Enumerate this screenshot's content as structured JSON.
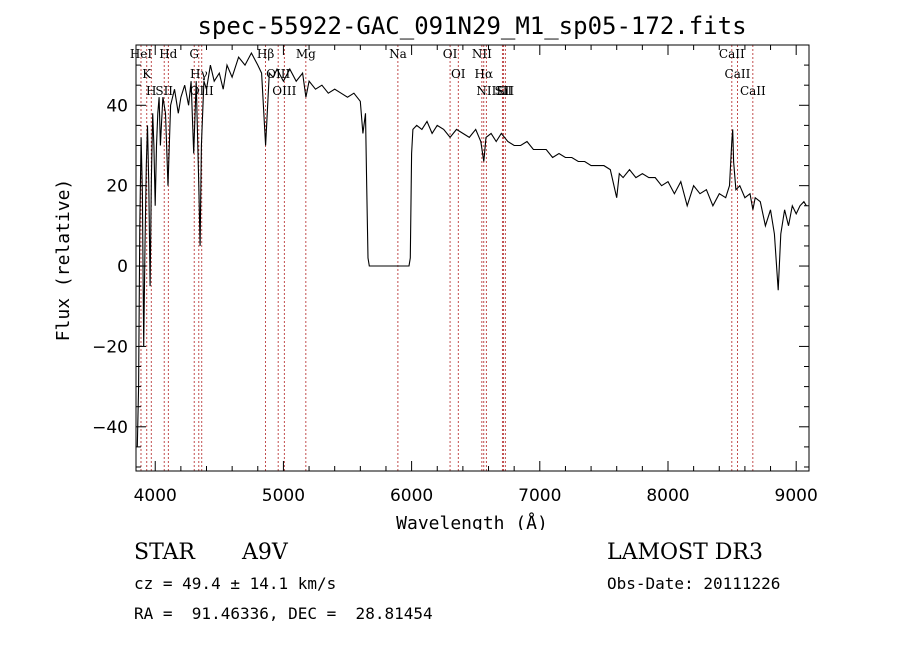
{
  "chart_data": {
    "type": "line",
    "title": "spec-55922-GAC_091N29_M1_sp05-172.fits",
    "xlabel": "Wavelength (Å)",
    "ylabel": "Flux (relative)",
    "xlim": [
      3850,
      9100
    ],
    "ylim": [
      -51,
      55
    ],
    "xticks": [
      4000,
      5000,
      6000,
      7000,
      8000,
      9000
    ],
    "yticks": [
      -40,
      -20,
      0,
      20,
      40
    ],
    "series": [
      {
        "points": [
          [
            3860,
            -45
          ],
          [
            3870,
            -30
          ],
          [
            3880,
            10
          ],
          [
            3890,
            32
          ],
          [
            3900,
            18
          ],
          [
            3910,
            -20
          ],
          [
            3920,
            5
          ],
          [
            3930,
            25
          ],
          [
            3940,
            35
          ],
          [
            3950,
            20
          ],
          [
            3960,
            -5
          ],
          [
            3970,
            22
          ],
          [
            3980,
            38
          ],
          [
            3990,
            30
          ],
          [
            4000,
            15
          ],
          [
            4010,
            30
          ],
          [
            4020,
            38
          ],
          [
            4030,
            42
          ],
          [
            4040,
            30
          ],
          [
            4050,
            36
          ],
          [
            4060,
            42
          ],
          [
            4080,
            38
          ],
          [
            4100,
            20
          ],
          [
            4120,
            40
          ],
          [
            4150,
            44
          ],
          [
            4180,
            38
          ],
          [
            4200,
            42
          ],
          [
            4230,
            45
          ],
          [
            4260,
            40
          ],
          [
            4280,
            46
          ],
          [
            4300,
            28
          ],
          [
            4320,
            46
          ],
          [
            4340,
            20
          ],
          [
            4350,
            5
          ],
          [
            4360,
            30
          ],
          [
            4380,
            46
          ],
          [
            4400,
            44
          ],
          [
            4430,
            50
          ],
          [
            4460,
            46
          ],
          [
            4500,
            48
          ],
          [
            4530,
            44
          ],
          [
            4560,
            50
          ],
          [
            4600,
            47
          ],
          [
            4650,
            52
          ],
          [
            4700,
            50
          ],
          [
            4750,
            53
          ],
          [
            4800,
            50
          ],
          [
            4830,
            48
          ],
          [
            4861,
            30
          ],
          [
            4890,
            48
          ],
          [
            4920,
            47
          ],
          [
            4950,
            49
          ],
          [
            5000,
            46
          ],
          [
            5050,
            49
          ],
          [
            5100,
            46
          ],
          [
            5150,
            48
          ],
          [
            5175,
            42
          ],
          [
            5200,
            46
          ],
          [
            5250,
            44
          ],
          [
            5300,
            45
          ],
          [
            5350,
            43
          ],
          [
            5400,
            44
          ],
          [
            5450,
            43
          ],
          [
            5500,
            42
          ],
          [
            5550,
            43
          ],
          [
            5600,
            41
          ],
          [
            5620,
            33
          ],
          [
            5640,
            38
          ],
          [
            5650,
            20
          ],
          [
            5660,
            2
          ],
          [
            5670,
            0
          ],
          [
            5700,
            0
          ],
          [
            5800,
            0
          ],
          [
            5900,
            0
          ],
          [
            5980,
            0
          ],
          [
            5990,
            2
          ],
          [
            6000,
            28
          ],
          [
            6010,
            34
          ],
          [
            6040,
            35
          ],
          [
            6080,
            34
          ],
          [
            6120,
            36
          ],
          [
            6160,
            33
          ],
          [
            6200,
            35
          ],
          [
            6250,
            34
          ],
          [
            6300,
            32
          ],
          [
            6350,
            34
          ],
          [
            6400,
            33
          ],
          [
            6450,
            32
          ],
          [
            6500,
            34
          ],
          [
            6540,
            31
          ],
          [
            6563,
            26
          ],
          [
            6580,
            32
          ],
          [
            6620,
            33
          ],
          [
            6660,
            31
          ],
          [
            6700,
            33
          ],
          [
            6750,
            31
          ],
          [
            6800,
            30
          ],
          [
            6850,
            30
          ],
          [
            6900,
            31
          ],
          [
            6950,
            29
          ],
          [
            7000,
            29
          ],
          [
            7050,
            29
          ],
          [
            7100,
            27
          ],
          [
            7150,
            28
          ],
          [
            7200,
            27
          ],
          [
            7250,
            27
          ],
          [
            7300,
            26
          ],
          [
            7350,
            26
          ],
          [
            7400,
            25
          ],
          [
            7450,
            25
          ],
          [
            7500,
            25
          ],
          [
            7550,
            24
          ],
          [
            7600,
            17
          ],
          [
            7620,
            23
          ],
          [
            7650,
            22
          ],
          [
            7700,
            24
          ],
          [
            7750,
            22
          ],
          [
            7800,
            23
          ],
          [
            7850,
            22
          ],
          [
            7900,
            22
          ],
          [
            7950,
            20
          ],
          [
            8000,
            21
          ],
          [
            8050,
            18
          ],
          [
            8100,
            21
          ],
          [
            8150,
            15
          ],
          [
            8200,
            20
          ],
          [
            8250,
            18
          ],
          [
            8300,
            19
          ],
          [
            8350,
            15
          ],
          [
            8400,
            18
          ],
          [
            8450,
            17
          ],
          [
            8480,
            20
          ],
          [
            8498,
            31
          ],
          [
            8505,
            34
          ],
          [
            8512,
            26
          ],
          [
            8530,
            19
          ],
          [
            8560,
            20
          ],
          [
            8600,
            17
          ],
          [
            8640,
            18
          ],
          [
            8662,
            14
          ],
          [
            8680,
            17
          ],
          [
            8720,
            16
          ],
          [
            8760,
            10
          ],
          [
            8800,
            14
          ],
          [
            8830,
            8
          ],
          [
            8860,
            -6
          ],
          [
            8880,
            8
          ],
          [
            8910,
            14
          ],
          [
            8940,
            10
          ],
          [
            8970,
            15
          ],
          [
            9000,
            13
          ],
          [
            9030,
            15
          ],
          [
            9060,
            16
          ],
          [
            9080,
            15
          ]
        ]
      }
    ],
    "spectral_lines": [
      {
        "name": "HeI",
        "wavelength": 3889
      },
      {
        "name": "K",
        "wavelength": 3934
      },
      {
        "name": "H",
        "wavelength": 3969
      },
      {
        "name": "SII",
        "wavelength": 4070
      },
      {
        "name": "Hd",
        "wavelength": 4102
      },
      {
        "name": "G",
        "wavelength": 4304
      },
      {
        "name": "Hγ",
        "wavelength": 4340
      },
      {
        "name": "OIII",
        "wavelength": 4363
      },
      {
        "name": "Hβ",
        "wavelength": 4861
      },
      {
        "name": "OIII",
        "wavelength": 4959
      },
      {
        "name": "OIII",
        "wavelength": 5007
      },
      {
        "name": "Mg",
        "wavelength": 5175
      },
      {
        "name": "Na",
        "wavelength": 5893
      },
      {
        "name": "OI",
        "wavelength": 6300
      },
      {
        "name": "OI",
        "wavelength": 6364
      },
      {
        "name": "NII",
        "wavelength": 6548
      },
      {
        "name": "Hα",
        "wavelength": 6563
      },
      {
        "name": "NII",
        "wavelength": 6583
      },
      {
        "name": "Li",
        "wavelength": 6708
      },
      {
        "name": "SII",
        "wavelength": 6716
      },
      {
        "name": "SII",
        "wavelength": 6731
      },
      {
        "name": "CaII",
        "wavelength": 8498
      },
      {
        "name": "CaII",
        "wavelength": 8542
      },
      {
        "name": "CaII",
        "wavelength": 8662
      }
    ],
    "line_color": "#000000",
    "marker_color": "#b22222"
  },
  "info": {
    "object_class": "STAR",
    "subclass": "A9V",
    "survey": "LAMOST DR3",
    "cz_text": "cz = 49.4 ± 14.1 km/s",
    "obs_date_text": "Obs-Date: 20111226",
    "radec_text": "RA =  91.46336, DEC =  28.81454"
  }
}
